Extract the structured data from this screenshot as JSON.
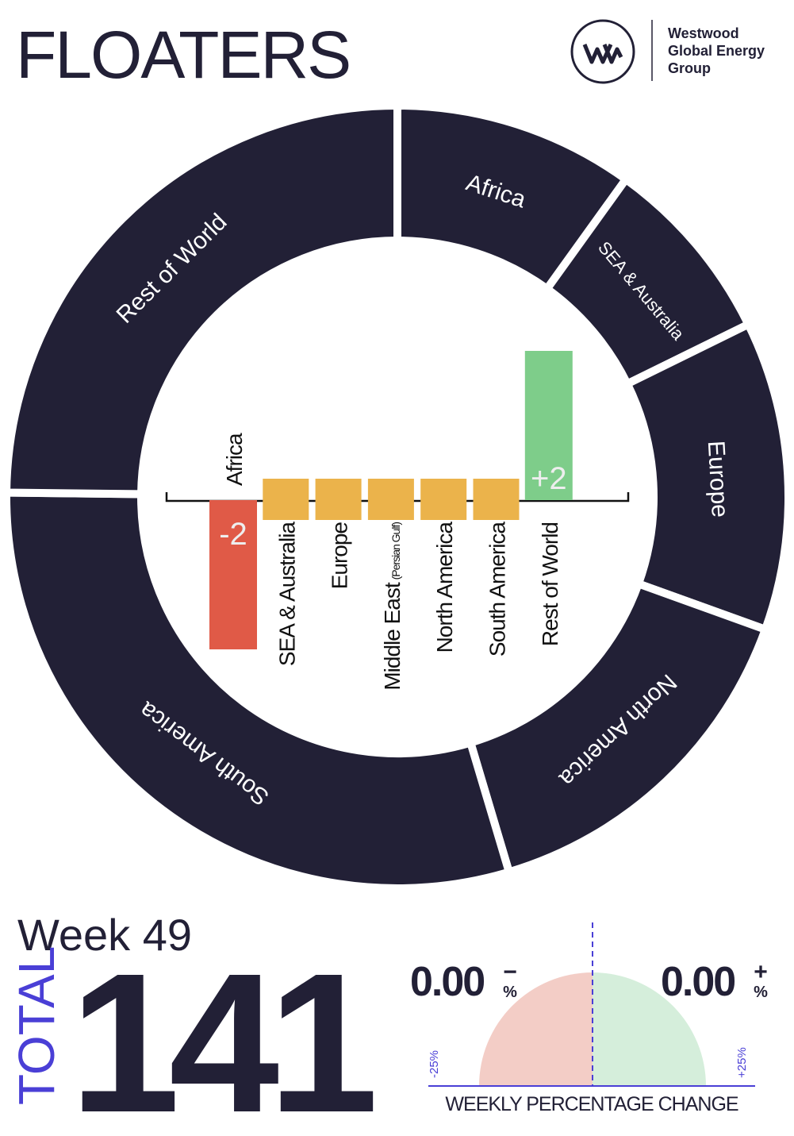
{
  "header": {
    "title": "FLOATERS",
    "logo_lines": [
      "Westwood",
      "Global Energy",
      "Group"
    ]
  },
  "chart_data": [
    {
      "type": "donut",
      "categories": [
        "Africa",
        "SEA & Australia",
        "Europe",
        "North America",
        "South America",
        "Rest of World"
      ],
      "values": [
        14,
        11,
        18,
        21,
        42,
        35
      ],
      "color": "#222036"
    },
    {
      "type": "bar",
      "categories": [
        "Africa",
        "SEA & Australia",
        "Europe",
        "Middle East",
        "North America",
        "South America",
        "Rest of World"
      ],
      "category_notes": [
        null,
        null,
        null,
        "(Persian Gulf)",
        null,
        null,
        null
      ],
      "values": [
        -2,
        0,
        0,
        0,
        0,
        0,
        2
      ],
      "value_labels": [
        "-2",
        null,
        null,
        null,
        null,
        null,
        "+2"
      ],
      "ylim": [
        -2,
        2
      ],
      "colors": {
        "negative": "#e05a47",
        "zero": "#ebb34b",
        "positive": "#7ecd8a"
      }
    },
    {
      "type": "gauge",
      "title": "WEEKLY PERCENTAGE CHANGE",
      "xlim": [
        -25,
        25
      ],
      "xticks": [
        {
          "value": -25,
          "label": "-25%"
        },
        {
          "value": 25,
          "label": "+25%"
        }
      ],
      "values": [
        0,
        0
      ],
      "value_labels": [
        "0.00",
        "0.00"
      ],
      "signs": [
        "−",
        "+"
      ],
      "unit": "%",
      "colors": [
        "#f3cdc6",
        "#d5eedb"
      ]
    }
  ],
  "summary": {
    "week": "Week 49",
    "total_label": "TOTAL",
    "total": 141
  }
}
